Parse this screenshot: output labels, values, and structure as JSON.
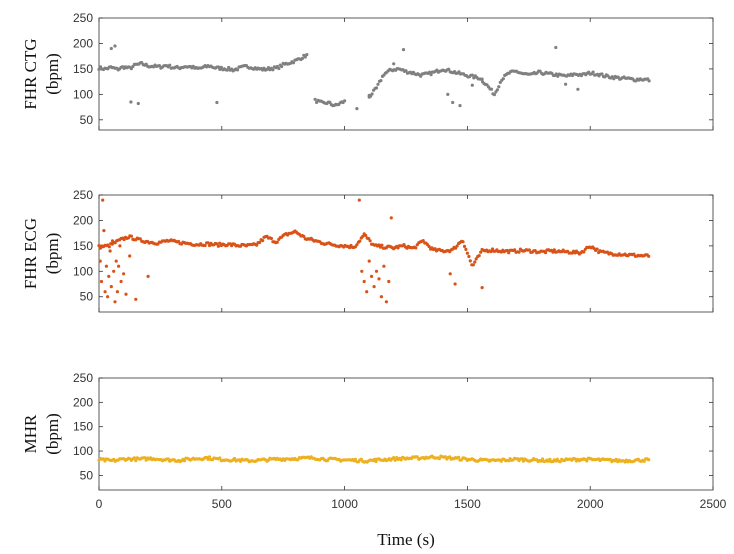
{
  "chart_data": [
    {
      "type": "scatter",
      "ylabel": "FHR CTG",
      "ylabel_units": "(bpm)",
      "ylim": [
        30,
        250
      ],
      "yticks": [
        50,
        100,
        150,
        200,
        250
      ],
      "color": "#808080",
      "series": [
        {
          "segments": [
            {
              "x0": 0,
              "x1": 850,
              "values": [
                152,
                150,
                153,
                149,
                154,
                151,
                158,
                160,
                156,
                155,
                154,
                157,
                153,
                152,
                155,
                154,
                150,
                153,
                156,
                152,
                151,
                150,
                148,
                152,
                155,
                153,
                150,
                149,
                151,
                152,
                158,
                162,
                166,
                172,
                178
              ]
            },
            {
              "x0": 880,
              "x1": 1000,
              "values": [
                88,
                85,
                82,
                84,
                80,
                78,
                83,
                86
              ]
            },
            {
              "x0": 1100,
              "x1": 2240,
              "values": [
                95,
                112,
                140,
                148,
                150,
                145,
                142,
                138,
                140,
                144,
                150,
                146,
                142,
                138,
                135,
                132,
                118,
                100,
                130,
                142,
                145,
                140,
                138,
                143,
                141,
                139,
                137,
                136,
                140,
                138,
                142,
                140,
                136,
                134,
                132,
                131,
                129,
                130,
                128
              ]
            }
          ],
          "outliers": [
            [
              50,
              190
            ],
            [
              65,
              195
            ],
            [
              130,
              85
            ],
            [
              160,
              82
            ],
            [
              480,
              84
            ],
            [
              1050,
              72
            ],
            [
              1100,
              98
            ],
            [
              1200,
              160
            ],
            [
              1240,
              188
            ],
            [
              1420,
              100
            ],
            [
              1440,
              84
            ],
            [
              1470,
              78
            ],
            [
              1520,
              118
            ],
            [
              1560,
              130
            ],
            [
              1860,
              192
            ],
            [
              1900,
              120
            ],
            [
              1950,
              110
            ]
          ]
        }
      ]
    },
    {
      "type": "scatter",
      "ylabel": "FHR ECG",
      "ylabel_units": "(bpm)",
      "ylim": [
        20,
        250
      ],
      "yticks": [
        50,
        100,
        150,
        200,
        250
      ],
      "color": "#d95319",
      "series": [
        {
          "segments": [
            {
              "x0": 0,
              "x1": 2240,
              "values": [
                148,
                150,
                160,
                168,
                162,
                158,
                156,
                160,
                157,
                155,
                153,
                154,
                152,
                153,
                151,
                150,
                152,
                168,
                158,
                172,
                178,
                165,
                160,
                155,
                152,
                150,
                148,
                172,
                150,
                148,
                146,
                150,
                145,
                160,
                142,
                140,
                142,
                162,
                110,
                140,
                142,
                140,
                139,
                141,
                140,
                138,
                140,
                139,
                138,
                136,
                150,
                138,
                135,
                134,
                132,
                131,
                130
              ]
            }
          ],
          "outliers": [
            [
              5,
              120
            ],
            [
              10,
              80
            ],
            [
              15,
              240
            ],
            [
              20,
              180
            ],
            [
              25,
              60
            ],
            [
              30,
              110
            ],
            [
              35,
              50
            ],
            [
              40,
              90
            ],
            [
              45,
              140
            ],
            [
              50,
              70
            ],
            [
              55,
              160
            ],
            [
              60,
              100
            ],
            [
              65,
              40
            ],
            [
              70,
              120
            ],
            [
              75,
              60
            ],
            [
              80,
              110
            ],
            [
              85,
              150
            ],
            [
              90,
              80
            ],
            [
              100,
              95
            ],
            [
              110,
              55
            ],
            [
              125,
              130
            ],
            [
              150,
              45
            ],
            [
              200,
              90
            ],
            [
              1060,
              240
            ],
            [
              1070,
              100
            ],
            [
              1080,
              80
            ],
            [
              1090,
              60
            ],
            [
              1100,
              120
            ],
            [
              1110,
              90
            ],
            [
              1120,
              70
            ],
            [
              1130,
              100
            ],
            [
              1140,
              85
            ],
            [
              1150,
              50
            ],
            [
              1160,
              110
            ],
            [
              1170,
              40
            ],
            [
              1180,
              80
            ],
            [
              1190,
              205
            ],
            [
              1430,
              95
            ],
            [
              1450,
              75
            ],
            [
              1560,
              68
            ]
          ]
        }
      ]
    },
    {
      "type": "scatter",
      "ylabel": "MHR",
      "ylabel_units": "(bpm)",
      "ylim": [
        20,
        250
      ],
      "yticks": [
        50,
        100,
        150,
        200,
        250
      ],
      "color": "#edb120",
      "series": [
        {
          "segments": [
            {
              "x0": 0,
              "x1": 2240,
              "values": [
                82,
                80,
                84,
                83,
                85,
                82,
                81,
                84,
                86,
                83,
                82,
                80,
                81,
                83,
                84,
                85,
                86,
                83,
                82,
                81,
                80,
                82,
                84,
                85,
                86,
                88,
                86,
                84,
                82,
                80,
                81,
                83,
                82,
                81,
                80,
                82,
                83,
                82,
                81,
                80,
                81,
                82
              ]
            }
          ],
          "outliers": []
        }
      ]
    }
  ],
  "x_axis": {
    "label": "Time (s)",
    "xlim": [
      0,
      2500
    ],
    "ticks": [
      0,
      500,
      1000,
      1500,
      2000,
      2500
    ]
  }
}
